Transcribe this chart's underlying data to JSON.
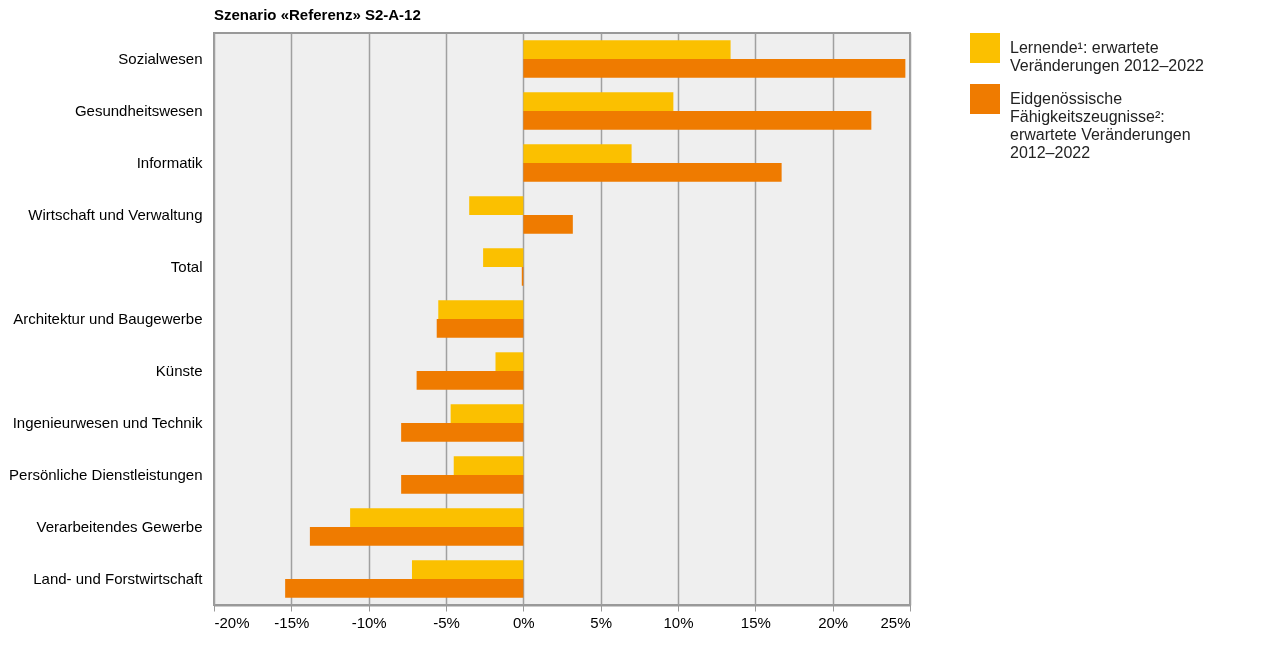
{
  "chart_data": {
    "type": "bar",
    "orientation": "horizontal",
    "title": "Szenario «Referenz» S2-A-12",
    "categories": [
      "Sozialwesen",
      "Gesundheitswesen",
      "Informatik",
      "Wirtschaft und Verwaltung",
      "Total",
      "Architektur und Baugewerbe",
      "Künste",
      "Ingenieurwesen und Technik",
      "Persönliche Dienstleistungen",
      "Verarbeitendes Gewerbe",
      "Land- und Forstwirtschaft"
    ],
    "series": [
      {
        "name": "Lernende¹: erwartete Veränderungen 2012–2022",
        "color": "#fbc000",
        "values": [
          13.4,
          9.7,
          7.0,
          -3.5,
          -2.6,
          -5.5,
          -1.8,
          -4.7,
          -4.5,
          -11.2,
          -7.2
        ]
      },
      {
        "name": "Eidgenössische Fähigkeitszeugnisse²: erwartete Veränderungen 2012–2022",
        "color": "#ef7b00",
        "values": [
          24.7,
          22.5,
          16.7,
          3.2,
          -0.1,
          -5.6,
          -6.9,
          -7.9,
          -7.9,
          -13.8,
          -15.4
        ]
      }
    ],
    "xlim": [
      -20,
      25
    ],
    "xticks": [
      {
        "value": -20,
        "label": "-20%"
      },
      {
        "value": -15,
        "label": "-15%"
      },
      {
        "value": -10,
        "label": "-10%"
      },
      {
        "value": -5,
        "label": "-5%"
      },
      {
        "value": 0,
        "label": "0%"
      },
      {
        "value": 5,
        "label": "5%"
      },
      {
        "value": 10,
        "label": "10%"
      },
      {
        "value": 15,
        "label": "15%"
      },
      {
        "value": 20,
        "label": "20%"
      },
      {
        "value": 25,
        "label": "25%"
      }
    ],
    "grid": "x",
    "legend": "top right"
  }
}
